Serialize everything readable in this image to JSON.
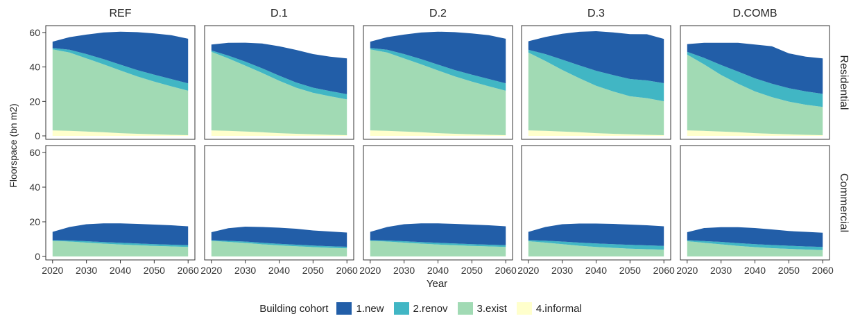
{
  "chart_data": {
    "type": "area",
    "ylabel": "Floorspace (bn m2)",
    "xlabel": "Year",
    "x": [
      2020,
      2025,
      2030,
      2035,
      2040,
      2045,
      2050,
      2055,
      2060
    ],
    "xticks": [
      2020,
      2030,
      2040,
      2050,
      2060
    ],
    "xlim": [
      2018,
      2062
    ],
    "ylim": [
      -2,
      64
    ],
    "yticks": [
      0,
      20,
      40,
      60
    ],
    "columns": [
      "REF",
      "D.1",
      "D.2",
      "D.3",
      "D.COMB"
    ],
    "rows": [
      "Residential",
      "Commercial"
    ],
    "series_names": [
      "1.new",
      "2.renov",
      "3.exist",
      "4.informal"
    ],
    "stacked": true,
    "panels": [
      {
        "column": "REF",
        "row": "Residential",
        "series": [
          {
            "name": "4.informal",
            "values": [
              3.2,
              2.9,
              2.5,
              2.1,
              1.6,
              1.2,
              0.9,
              0.6,
              0.4
            ]
          },
          {
            "name": "3.exist",
            "values": [
              47,
              45.5,
              42.5,
              39.5,
              36.4,
              33.3,
              30.6,
              28.2,
              25.8
            ]
          },
          {
            "name": "2.renov",
            "values": [
              0.8,
              1.6,
              2.5,
              3.0,
              3.4,
              3.7,
              4.0,
              4.2,
              4.3
            ]
          },
          {
            "name": "1.new",
            "values": [
              3.7,
              7.3,
              11.3,
              15.4,
              19.1,
              22.0,
              24.0,
              25.5,
              25.9
            ]
          }
        ]
      },
      {
        "column": "D.1",
        "row": "Residential",
        "series": [
          {
            "name": "4.informal",
            "values": [
              3.2,
              2.9,
              2.5,
              2.1,
              1.6,
              1.2,
              0.9,
              0.6,
              0.4
            ]
          },
          {
            "name": "3.exist",
            "values": [
              45.6,
              42.1,
              38.3,
              34.4,
              30.4,
              26.8,
              24.1,
              22.4,
              20.8
            ]
          },
          {
            "name": "2.renov",
            "values": [
              0.8,
              1.6,
              2.3,
              2.7,
              3.0,
              3.0,
              3.0,
              3.0,
              3.0
            ]
          },
          {
            "name": "1.new",
            "values": [
              3.4,
              7.4,
              11.0,
              14.4,
              17.0,
              18.9,
              19.5,
              20.0,
              20.8
            ]
          }
        ]
      },
      {
        "column": "D.2",
        "row": "Residential",
        "series": [
          {
            "name": "4.informal",
            "values": [
              3.2,
              2.9,
              2.5,
              2.1,
              1.6,
              1.2,
              0.9,
              0.6,
              0.4
            ]
          },
          {
            "name": "3.exist",
            "values": [
              47,
              45.5,
              42.5,
              39.5,
              36.4,
              33.3,
              30.6,
              28.2,
              25.8
            ]
          },
          {
            "name": "2.renov",
            "values": [
              0.8,
              1.6,
              2.5,
              3.0,
              3.4,
              3.7,
              4.0,
              4.2,
              4.3
            ]
          },
          {
            "name": "1.new",
            "values": [
              3.7,
              7.3,
              11.3,
              15.4,
              19.1,
              22.0,
              24.0,
              25.5,
              25.9
            ]
          }
        ]
      },
      {
        "column": "D.3",
        "row": "Residential",
        "series": [
          {
            "name": "4.informal",
            "values": [
              3.2,
              2.9,
              2.5,
              2.1,
              1.6,
              1.2,
              0.9,
              0.6,
              0.4
            ]
          },
          {
            "name": "3.exist",
            "values": [
              45.2,
              40.6,
              35.8,
              31.4,
              27.5,
              24.6,
              22.1,
              21.3,
              19.7
            ]
          },
          {
            "name": "2.renov",
            "values": [
              1.6,
              4.0,
              6.0,
              7.5,
              8.7,
              9.5,
              10.0,
              10.3,
              10.5
            ]
          },
          {
            "name": "1.new",
            "values": [
              4.9,
              9.9,
              15.0,
              19.4,
              23.0,
              24.8,
              26.1,
              26.8,
              25.7
            ]
          }
        ]
      },
      {
        "column": "D.COMB",
        "row": "Residential",
        "series": [
          {
            "name": "4.informal",
            "values": [
              3.2,
              2.9,
              2.5,
              2.1,
              1.6,
              1.2,
              0.9,
              0.6,
              0.4
            ]
          },
          {
            "name": "3.exist",
            "values": [
              44.0,
              38.6,
              32.9,
              28.2,
              24.2,
              21.3,
              19.0,
              17.5,
              16.4
            ]
          },
          {
            "name": "2.renov",
            "values": [
              1.6,
              3.8,
              5.8,
              7.0,
              7.6,
              7.8,
              7.8,
              7.7,
              7.6
            ]
          },
          {
            "name": "1.new",
            "values": [
              4.5,
              8.7,
              12.8,
              16.7,
              19.6,
              21.7,
              20.2,
              20.2,
              20.6
            ]
          }
        ]
      },
      {
        "column": "REF",
        "row": "Commercial",
        "series": [
          {
            "name": "4.informal",
            "values": [
              0,
              0,
              0,
              0,
              0,
              0,
              0,
              0,
              0
            ]
          },
          {
            "name": "3.exist",
            "values": [
              9.0,
              8.6,
              8.0,
              7.4,
              6.9,
              6.5,
              6.1,
              5.8,
              5.5
            ]
          },
          {
            "name": "2.renov",
            "values": [
              0.4,
              0.6,
              0.8,
              0.9,
              1.0,
              1.0,
              1.0,
              1.0,
              1.0
            ]
          },
          {
            "name": "1.new",
            "values": [
              4.8,
              7.8,
              9.8,
              10.8,
              11.2,
              11.3,
              11.3,
              11.2,
              10.9
            ]
          }
        ]
      },
      {
        "column": "D.1",
        "row": "Commercial",
        "series": [
          {
            "name": "4.informal",
            "values": [
              0,
              0,
              0,
              0,
              0,
              0,
              0,
              0,
              0
            ]
          },
          {
            "name": "3.exist",
            "values": [
              9.0,
              8.4,
              7.8,
              7.0,
              6.4,
              5.9,
              5.4,
              5.0,
              4.7
            ]
          },
          {
            "name": "2.renov",
            "values": [
              0.4,
              0.6,
              0.8,
              0.9,
              0.9,
              0.9,
              0.9,
              0.9,
              0.9
            ]
          },
          {
            "name": "1.new",
            "values": [
              4.6,
              7.3,
              8.6,
              9.1,
              9.3,
              9.2,
              8.7,
              8.5,
              8.2
            ]
          }
        ]
      },
      {
        "column": "D.2",
        "row": "Commercial",
        "series": [
          {
            "name": "4.informal",
            "values": [
              0,
              0,
              0,
              0,
              0,
              0,
              0,
              0,
              0
            ]
          },
          {
            "name": "3.exist",
            "values": [
              9.0,
              8.6,
              8.0,
              7.4,
              6.9,
              6.5,
              6.1,
              5.8,
              5.5
            ]
          },
          {
            "name": "2.renov",
            "values": [
              0.4,
              0.6,
              0.8,
              0.9,
              1.0,
              1.0,
              1.0,
              1.0,
              1.0
            ]
          },
          {
            "name": "1.new",
            "values": [
              4.8,
              7.8,
              9.8,
              10.8,
              11.2,
              11.3,
              11.3,
              11.2,
              10.9
            ]
          }
        ]
      },
      {
        "column": "D.3",
        "row": "Commercial",
        "series": [
          {
            "name": "4.informal",
            "values": [
              0,
              0,
              0,
              0,
              0,
              0,
              0,
              0,
              0
            ]
          },
          {
            "name": "3.exist",
            "values": [
              8.8,
              8.0,
              7.1,
              6.2,
              5.5,
              5.0,
              4.5,
              4.2,
              3.9
            ]
          },
          {
            "name": "2.renov",
            "values": [
              0.6,
              1.1,
              1.5,
              1.8,
              2.0,
              2.1,
              2.2,
              2.2,
              2.2
            ]
          },
          {
            "name": "1.new",
            "values": [
              4.8,
              7.9,
              10.0,
              11.0,
              11.5,
              11.7,
              11.7,
              11.6,
              11.3
            ]
          }
        ]
      },
      {
        "column": "D.COMB",
        "row": "Commercial",
        "series": [
          {
            "name": "4.informal",
            "values": [
              0,
              0,
              0,
              0,
              0,
              0,
              0,
              0,
              0
            ]
          },
          {
            "name": "3.exist",
            "values": [
              8.8,
              7.9,
              7.0,
              6.1,
              5.4,
              4.8,
              4.4,
              4.0,
              3.7
            ]
          },
          {
            "name": "2.renov",
            "values": [
              0.6,
              1.0,
              1.4,
              1.6,
              1.7,
              1.8,
              1.8,
              1.8,
              1.8
            ]
          },
          {
            "name": "1.new",
            "values": [
              4.6,
              7.5,
              8.5,
              9.2,
              9.3,
              9.0,
              8.5,
              8.4,
              8.2
            ]
          }
        ]
      }
    ],
    "colors": {
      "1.new": "#225ea8",
      "2.renov": "#41b6c4",
      "3.exist": "#a1dab4",
      "4.informal": "#ffffcc"
    },
    "grid": false,
    "legend_position": "bottom",
    "legend_title": "Building cohort"
  }
}
